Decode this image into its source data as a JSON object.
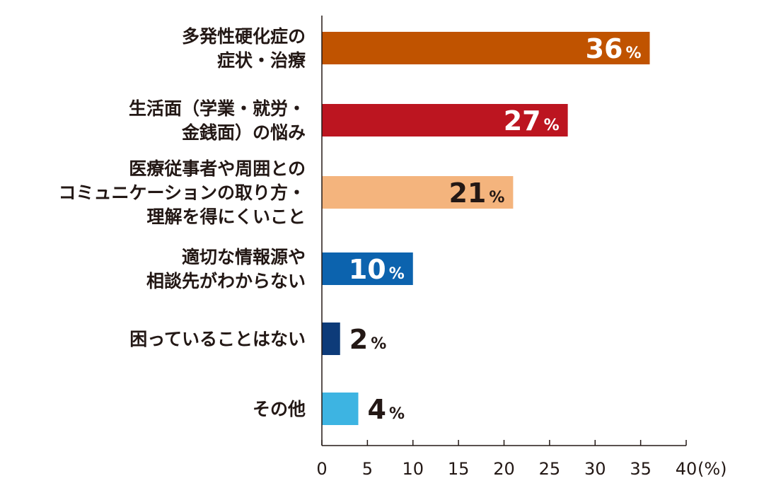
{
  "chart_data": {
    "type": "bar",
    "orientation": "horizontal",
    "categories": [
      [
        "多発性硬化症の",
        "症状・治療"
      ],
      [
        "生活面（学業・就労・",
        "金銭面）の悩み"
      ],
      [
        "医療従事者や周囲との",
        "コミュニケーションの取り方・",
        "理解を得にくいこと"
      ],
      [
        "適切な情報源や",
        "相談先がわからない"
      ],
      [
        "困っていることはない"
      ],
      [
        "その他"
      ]
    ],
    "values": [
      36,
      27,
      21,
      10,
      2,
      4
    ],
    "value_suffix": "%",
    "colors": [
      "#c05300",
      "#bc1520",
      "#f4b47d",
      "#0c63ae",
      "#0d3b79",
      "#3db4e2"
    ],
    "label_colors": [
      "#ffffff",
      "#ffffff",
      "#231815",
      "#ffffff",
      "#231815",
      "#231815"
    ],
    "xlim": [
      0,
      40
    ],
    "xticks": [
      "0",
      "5",
      "10",
      "15",
      "20",
      "25",
      "30",
      "35",
      "40"
    ],
    "xlabel": "(%)",
    "grid": false
  }
}
